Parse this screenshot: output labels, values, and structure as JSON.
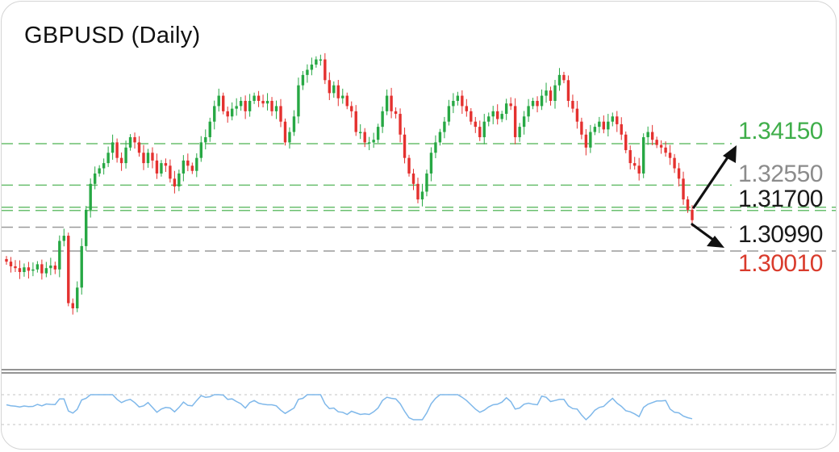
{
  "chart_data": {
    "type": "candlestick",
    "title": "GBPUSD (Daily)",
    "colors": {
      "up": "#27a844",
      "down": "#e4312f",
      "green_level": "#3fae4a",
      "grey_level": "#8c8c8c",
      "dark_level": "#1a1a1a",
      "red_level": "#d93b2c",
      "oscillator": "#7fb8ea"
    },
    "levels": [
      {
        "value": "1.34150",
        "color": "#3fae4a"
      },
      {
        "value": "1.32550",
        "color": "#8c8c8c"
      },
      {
        "value": "1.31700",
        "color": "#1a1a1a"
      },
      {
        "value": "1.30990",
        "color": "#1a1a1a"
      },
      {
        "value": "1.30010",
        "color": "#d93b2c"
      }
    ],
    "closes": [
      1.296,
      1.2942,
      1.2935,
      1.292,
      1.2938,
      1.2925,
      1.293,
      1.295,
      1.2915,
      1.2935,
      1.2945,
      1.293,
      1.304,
      1.306,
      1.28,
      1.278,
      1.286,
      1.302,
      1.316,
      1.326,
      1.33,
      1.332,
      1.334,
      1.338,
      1.342,
      1.336,
      1.334,
      1.34,
      1.344,
      1.342,
      1.338,
      1.334,
      1.338,
      1.335,
      1.33,
      1.334,
      1.333,
      1.328,
      1.325,
      1.33,
      1.335,
      1.333,
      1.331,
      1.336,
      1.342,
      1.344,
      1.35,
      1.356,
      1.36,
      1.354,
      1.352,
      1.355,
      1.356,
      1.358,
      1.354,
      1.358,
      1.36,
      1.358,
      1.357,
      1.358,
      1.354,
      1.356,
      1.35,
      1.342,
      1.346,
      1.352,
      1.364,
      1.368,
      1.37,
      1.372,
      1.374,
      1.374,
      1.366,
      1.361,
      1.364,
      1.359,
      1.36,
      1.356,
      1.354,
      1.346,
      1.346,
      1.342,
      1.342,
      1.343,
      1.348,
      1.354,
      1.36,
      1.354,
      1.353,
      1.345,
      1.336,
      1.33,
      1.326,
      1.32,
      1.323,
      1.33,
      1.338,
      1.342,
      1.346,
      1.35,
      1.356,
      1.358,
      1.36,
      1.356,
      1.354,
      1.35,
      1.348,
      1.344,
      1.35,
      1.352,
      1.354,
      1.351,
      1.353,
      1.357,
      1.356,
      1.344,
      1.348,
      1.352,
      1.356,
      1.358,
      1.356,
      1.36,
      1.362,
      1.358,
      1.364,
      1.368,
      1.366,
      1.358,
      1.355,
      1.35,
      1.345,
      1.34,
      1.346,
      1.348,
      1.35,
      1.347,
      1.35,
      1.352,
      1.349,
      1.345,
      1.339,
      1.334,
      1.333,
      1.33,
      1.344,
      1.346,
      1.343,
      1.341,
      1.34,
      1.338,
      1.336,
      1.332,
      1.328,
      1.32,
      1.316,
      1.312
    ]
  }
}
